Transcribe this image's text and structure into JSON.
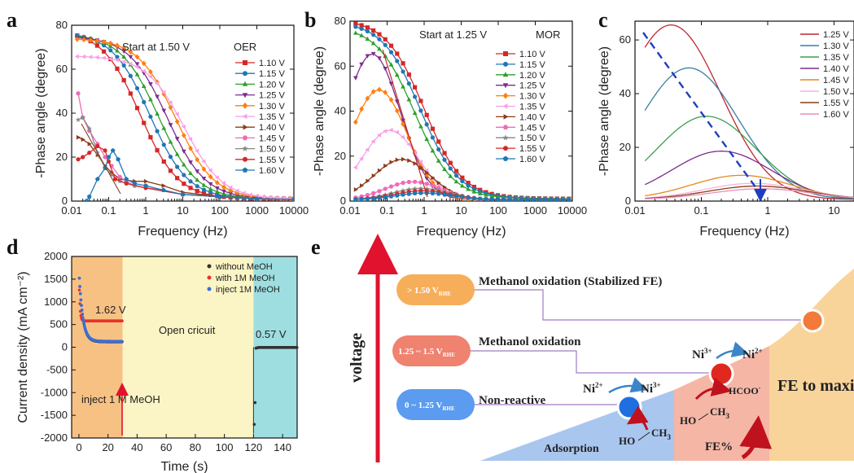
{
  "panels": {
    "a": "a",
    "b": "b",
    "c": "c",
    "d": "d",
    "e": "e"
  },
  "chart_data": [
    {
      "id": "a",
      "type": "line",
      "xscale": "log",
      "xlim": [
        0.01,
        10000
      ],
      "ylim": [
        0,
        80
      ],
      "xlabel": "Frequency (Hz)",
      "ylabel": "-Phase angle (degree)",
      "xticks": [
        "0.01",
        "0.1",
        "1",
        "10",
        "100",
        "1000",
        "10000"
      ],
      "yticks": [
        "0",
        "20",
        "40",
        "60",
        "80"
      ],
      "annotation": "Start at 1.50 V",
      "legend_title": "OER",
      "legend_position": "top-right",
      "series": [
        {
          "name": "1.10 V",
          "color": "#d62728",
          "marker": "square",
          "k": 0.7,
          "peak": 77
        },
        {
          "name": "1.15 V",
          "color": "#1f77b4",
          "marker": "circle",
          "k": 1.3,
          "peak": 76
        },
        {
          "name": "1.20 V",
          "color": "#2ca02c",
          "marker": "triangle-up",
          "k": 2.2,
          "peak": 75
        },
        {
          "name": "1.25 V",
          "color": "#7b2d8e",
          "marker": "triangle-down",
          "k": 3.8,
          "peak": 74
        },
        {
          "name": "1.30 V",
          "color": "#ff7f0e",
          "marker": "diamond",
          "k": 6.5,
          "peak": 73
        },
        {
          "name": "1.35 V",
          "color": "#f7a1e6",
          "marker": "triangle-left",
          "k": 11,
          "peak": 65
        },
        {
          "name": "1.40 V",
          "color": "#8c3b1a",
          "marker": "triangle-right",
          "k": 0,
          "peak": 0
        },
        {
          "name": "1.45 V",
          "color": "#f06ab7",
          "marker": "hexagon",
          "k": 0,
          "peak": 0
        },
        {
          "name": "1.50 V",
          "color": "#888888",
          "marker": "star",
          "k": 0,
          "peak": 0
        },
        {
          "name": "1.55 V",
          "color": "#d62728",
          "marker": "circle",
          "k": 0,
          "peak": 0
        },
        {
          "name": "1.60 V",
          "color": "#1f77b4",
          "marker": "pentagon",
          "k": 0,
          "peak": 0
        }
      ]
    },
    {
      "id": "b",
      "type": "line",
      "xscale": "log",
      "xlim": [
        0.01,
        10000
      ],
      "ylim": [
        0,
        80
      ],
      "xlabel": "Frequency (Hz)",
      "ylabel": "-Phase angle (degree)",
      "xticks": [
        "0.01",
        "0.1",
        "1",
        "10",
        "100",
        "1000",
        "10000"
      ],
      "yticks": [
        "0",
        "20",
        "40",
        "60",
        "80"
      ],
      "annotation": "Start at 1.25 V",
      "legend_title": "MOR",
      "legend_position": "top-right",
      "series": [
        {
          "name": "1.10 V",
          "color": "#d62728",
          "marker": "square",
          "k": 1.0,
          "peak": 80
        },
        {
          "name": "1.15 V",
          "color": "#1f77b4",
          "marker": "circle",
          "k": 0.8,
          "peak": 79
        },
        {
          "name": "1.20 V",
          "color": "#2ca02c",
          "marker": "triangle-up",
          "k": 0.55,
          "peak": 77
        },
        {
          "name": "1.25 V",
          "color": "#7b2d8e",
          "marker": "triangle-down",
          "peak_f": 0.04,
          "peak": 65
        },
        {
          "name": "1.30 V",
          "color": "#ff7f0e",
          "marker": "diamond",
          "peak_f": 0.06,
          "peak": 49
        },
        {
          "name": "1.35 V",
          "color": "#f7a1e6",
          "marker": "triangle-left",
          "peak_f": 0.12,
          "peak": 31
        },
        {
          "name": "1.40 V",
          "color": "#8c3b1a",
          "marker": "triangle-right",
          "peak_f": 0.25,
          "peak": 18
        },
        {
          "name": "1.45 V",
          "color": "#f06ab7",
          "marker": "hexagon",
          "peak_f": 0.5,
          "peak": 8
        },
        {
          "name": "1.50 V",
          "color": "#888888",
          "marker": "star",
          "peak_f": 0.8,
          "peak": 5
        },
        {
          "name": "1.55 V",
          "color": "#d62728",
          "marker": "circle",
          "peak_f": 0.9,
          "peak": 4
        },
        {
          "name": "1.60 V",
          "color": "#1f77b4",
          "marker": "pentagon",
          "peak_f": 1.0,
          "peak": 3
        }
      ]
    },
    {
      "id": "c",
      "type": "line",
      "xscale": "log",
      "xlim": [
        0.01,
        20
      ],
      "ylim": [
        0,
        67
      ],
      "xlabel": "Frequency (Hz)",
      "ylabel": "-Phase angle (degree)",
      "xticks": [
        "0.01",
        "0.1",
        "1",
        "10"
      ],
      "yticks": [
        "0",
        "20",
        "40",
        "60"
      ],
      "legend_position": "top-right",
      "series": [
        {
          "name": "1.25 V",
          "color": "#c0272d",
          "peak_f": 0.035,
          "peak": 65
        },
        {
          "name": "1.30 V",
          "color": "#3a7ca5",
          "peak_f": 0.065,
          "peak": 49
        },
        {
          "name": "1.35 V",
          "color": "#3c9d4e",
          "peak_f": 0.12,
          "peak": 31
        },
        {
          "name": "1.40 V",
          "color": "#7b2d8e",
          "peak_f": 0.2,
          "peak": 18
        },
        {
          "name": "1.45 V",
          "color": "#e08a1e",
          "peak_f": 0.4,
          "peak": 9
        },
        {
          "name": "1.50 V",
          "color": "#f4b6d8",
          "peak_f": 0.6,
          "peak": 6
        },
        {
          "name": "1.55 V",
          "color": "#8c3b1a",
          "peak_f": 0.7,
          "peak": 5
        },
        {
          "name": "1.60 V",
          "color": "#e88fb8",
          "peak_f": 0.8,
          "peak": 4
        }
      ]
    },
    {
      "id": "d",
      "type": "scatter",
      "xlim": [
        -5,
        150
      ],
      "ylim": [
        -2000,
        2000
      ],
      "xlabel": "Time (s)",
      "ylabel": "Current density (mA cm⁻²)",
      "xticks": [
        "0",
        "20",
        "40",
        "60",
        "80",
        "100",
        "120",
        "140"
      ],
      "yticks": [
        "2000",
        "1500",
        "1000",
        "500",
        "0",
        "-500",
        "-1000",
        "-1500",
        "-2000"
      ],
      "legend_position": "top-right",
      "regions": [
        "1.62 V",
        "Open cricuit",
        "0.57 V"
      ],
      "inject_label": "inject 1 M MeOH",
      "series": [
        {
          "name": "without MeOH",
          "color": "#333333",
          "plateau": 120
        },
        {
          "name": "with 1M MeOH",
          "color": "#e8322b",
          "plateau": 580
        },
        {
          "name": "inject 1M MeOH",
          "color": "#3b6fd8",
          "plateau": 130
        }
      ]
    }
  ],
  "diagram_e": {
    "ylabel": "voltage",
    "levels": [
      {
        "pill": "> 1.50 V",
        "sub": "RHE",
        "label": "Methanol oxidation (Stabilized FE)"
      },
      {
        "pill": "1.25 ~ 1.5 V",
        "sub": "RHE",
        "label": "Methanol oxidation"
      },
      {
        "pill": "0 ~ 1.25 V",
        "sub": "RHE",
        "label": "Non-reactive"
      }
    ],
    "adsorption": "Adsorption",
    "fe_percent": "FE%",
    "fe_max": "FE to maximum",
    "ni2_a": "Ni",
    "ni2_a_sup": "2+",
    "ni3_a": "Ni",
    "ni3_a_sup": "3+",
    "ni3_b": "Ni",
    "ni3_b_sup": "3+",
    "ni2_b": "Ni",
    "ni2_b_sup": "2+",
    "ho": "HO",
    "ch3": "CH",
    "ch3_sub": "3",
    "hcoo": "HCOO",
    "hcoo_sup": "-",
    "colors": {
      "low": "#5b9bf0",
      "mid": "#f08270",
      "high": "#f7ae5a",
      "ads_bg": "#a9c6ef",
      "mid_bg": "#f5b6a6",
      "high_bg": "#f9d49a",
      "arrow": "#e0122e"
    }
  }
}
